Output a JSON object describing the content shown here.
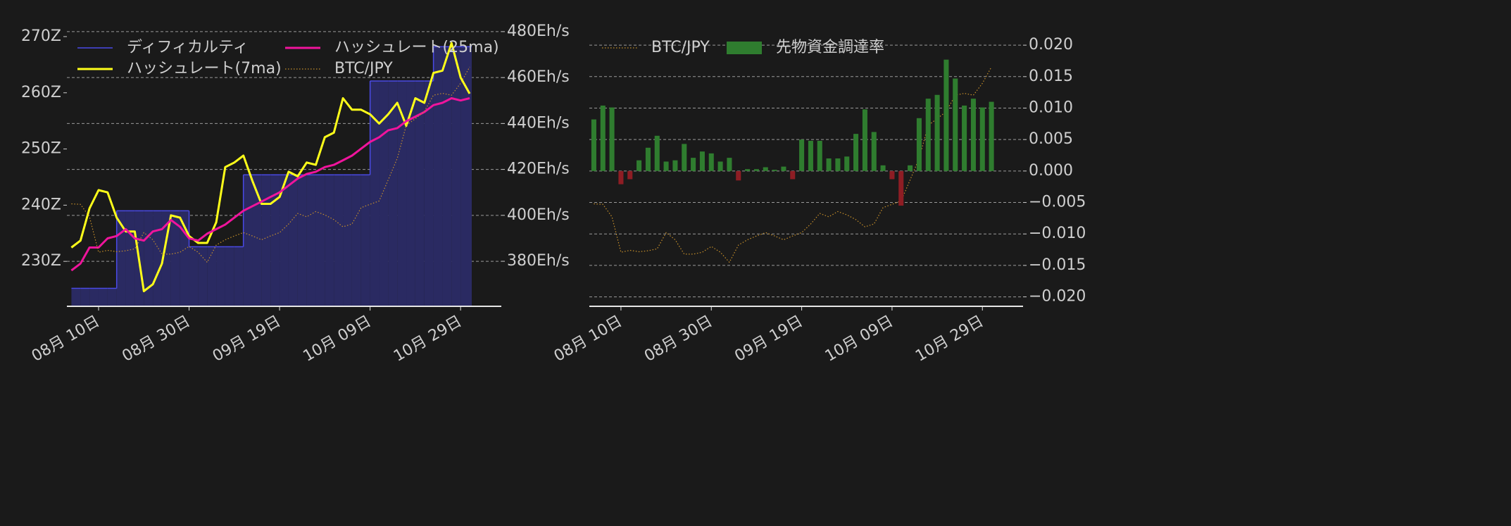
{
  "chart_data": [
    {
      "type": "line",
      "x": [
        "08-04",
        "08-06",
        "08-08",
        "08-10",
        "08-12",
        "08-14",
        "08-16",
        "08-18",
        "08-20",
        "08-22",
        "08-24",
        "08-26",
        "08-28",
        "08-30",
        "09-01",
        "09-03",
        "09-05",
        "09-07",
        "09-09",
        "09-11",
        "09-13",
        "09-15",
        "09-17",
        "09-19",
        "09-21",
        "09-23",
        "09-25",
        "09-27",
        "09-29",
        "10-01",
        "10-03",
        "10-05",
        "10-07",
        "10-09",
        "10-11",
        "10-13",
        "10-15",
        "10-17",
        "10-19",
        "10-21",
        "10-23",
        "10-25",
        "10-27",
        "10-29",
        "10-31"
      ],
      "xlim": [
        "08-03",
        "11-07"
      ],
      "xticks": [
        {
          "value": "08-10",
          "label": "08月 10日"
        },
        {
          "value": "08-30",
          "label": "08月 30日"
        },
        {
          "value": "09-19",
          "label": "09月 19日"
        },
        {
          "value": "10-09",
          "label": "10月 09日"
        },
        {
          "value": "10-29",
          "label": "10月 29日"
        }
      ],
      "ylim": [
        222,
        271.5
      ],
      "yticks": [
        {
          "value": 230,
          "label": "230Z"
        },
        {
          "value": 240,
          "label": "240Z"
        },
        {
          "value": 250,
          "label": "250Z"
        },
        {
          "value": 260,
          "label": "260Z"
        },
        {
          "value": 270,
          "label": "270Z"
        }
      ],
      "y_side": "left",
      "y2lim": [
        360.4,
        481.5
      ],
      "y2ticks": [
        {
          "value": 380,
          "label": "380Eh/s"
        },
        {
          "value": 400,
          "label": "400Eh/s"
        },
        {
          "value": 420,
          "label": "420Eh/s"
        },
        {
          "value": 440,
          "label": "440Eh/s"
        },
        {
          "value": 460,
          "label": "460Eh/s"
        },
        {
          "value": 480,
          "label": "480Eh/s"
        }
      ],
      "y3lim": [
        687,
        1268
      ],
      "grid": "y2",
      "legend_columns": 2,
      "series": [
        {
          "name": "ディフィカルティ",
          "type": "line",
          "drawstyle": "steps-post",
          "color": "#4a4ae6",
          "fill": "#2a2a62",
          "linewidth": 1.5,
          "linestyle": "solid",
          "axis": "y",
          "values": [
            225.2,
            225.2,
            225.2,
            225.2,
            225.2,
            239,
            239,
            239,
            239,
            239,
            239,
            239,
            239,
            232.6,
            232.6,
            232.6,
            232.6,
            232.6,
            232.6,
            245.4,
            245.4,
            245.4,
            245.4,
            245.4,
            245.4,
            245.4,
            245.4,
            245.4,
            245.4,
            245.4,
            245.4,
            245.4,
            245.4,
            262.1,
            262.1,
            262.1,
            262.1,
            262.1,
            262.1,
            262.1,
            268.2,
            268.2,
            268.2,
            268.2,
            268.2
          ]
        },
        {
          "name": "ハッシュレート(7ma)",
          "type": "line",
          "color": "#ffff1a",
          "linewidth": 3,
          "linestyle": "solid",
          "axis": "y2",
          "values": [
            386,
            389,
            403,
            411,
            410,
            399,
            393,
            393,
            367,
            370,
            379,
            400,
            399,
            391,
            388,
            388,
            397,
            421,
            423,
            426,
            415,
            405,
            405,
            408,
            419,
            417,
            423,
            422,
            434,
            436,
            451,
            446,
            446,
            444,
            440,
            444,
            449,
            439,
            451,
            449,
            462,
            463,
            475,
            460,
            453
          ]
        },
        {
          "name": "ハッシュレート(25ma)",
          "type": "line",
          "color": "#f0149c",
          "linewidth": 3,
          "linestyle": "solid",
          "axis": "y2",
          "values": [
            376,
            379,
            386,
            386,
            390,
            391,
            394,
            390,
            389,
            393,
            394,
            398,
            395,
            390,
            389,
            392,
            394,
            396,
            399,
            402,
            404,
            406,
            408,
            410,
            413,
            416,
            418,
            419,
            421,
            422,
            424,
            426,
            429,
            432,
            434,
            437,
            438,
            441,
            443,
            445,
            448,
            449,
            451,
            450,
            451
          ]
        },
        {
          "name": "BTC/JPY",
          "type": "line",
          "color": "#c8902a",
          "linewidth": 1.2,
          "linestyle": "dotted",
          "axis": "y3",
          "values": [
            901,
            900,
            874,
            800,
            804,
            801,
            803,
            807,
            841,
            826,
            796,
            796,
            800,
            812,
            800,
            779,
            815,
            826,
            834,
            841,
            834,
            826,
            834,
            841,
            859,
            881,
            874,
            885,
            878,
            868,
            853,
            859,
            893,
            900,
            907,
            951,
            996,
            1065,
            1079,
            1094,
            1128,
            1132,
            1128,
            1153,
            1187
          ]
        }
      ]
    },
    {
      "type": "bar",
      "x": [
        "08-04",
        "08-06",
        "08-08",
        "08-10",
        "08-12",
        "08-14",
        "08-16",
        "08-18",
        "08-20",
        "08-22",
        "08-24",
        "08-26",
        "08-28",
        "08-30",
        "09-01",
        "09-03",
        "09-05",
        "09-07",
        "09-09",
        "09-11",
        "09-13",
        "09-15",
        "09-17",
        "09-19",
        "09-21",
        "09-23",
        "09-25",
        "09-27",
        "09-29",
        "10-01",
        "10-03",
        "10-05",
        "10-07",
        "10-09",
        "10-11",
        "10-13",
        "10-15",
        "10-17",
        "10-19",
        "10-21",
        "10-23",
        "10-25",
        "10-27",
        "10-29",
        "10-31"
      ],
      "xlim": [
        "08-03",
        "11-07"
      ],
      "xticks": [
        {
          "value": "08-10",
          "label": "08月 10日"
        },
        {
          "value": "08-30",
          "label": "08月 30日"
        },
        {
          "value": "09-19",
          "label": "09月 19日"
        },
        {
          "value": "10-09",
          "label": "10月 09日"
        },
        {
          "value": "10-29",
          "label": "10月 29日"
        }
      ],
      "ylim": [
        -0.0215,
        0.0227
      ],
      "yticks": [
        {
          "value": -0.02,
          "label": "−0.020"
        },
        {
          "value": -0.015,
          "label": "−0.015"
        },
        {
          "value": -0.01,
          "label": "−0.010"
        },
        {
          "value": -0.005,
          "label": "−0.005"
        },
        {
          "value": 0,
          "label": "0.000"
        },
        {
          "value": 0.005,
          "label": "0.005"
        },
        {
          "value": 0.01,
          "label": "0.010"
        },
        {
          "value": 0.015,
          "label": "0.015"
        },
        {
          "value": 0.02,
          "label": "0.020"
        }
      ],
      "y_side": "right",
      "y3lim": [
        687,
        1268
      ],
      "grid": "y",
      "legend_columns": 2,
      "series": [
        {
          "name": "BTC/JPY",
          "type": "line",
          "color": "#c8902a",
          "linewidth": 1.2,
          "linestyle": "dotted",
          "axis": "y3",
          "values": [
            901,
            900,
            874,
            800,
            804,
            801,
            803,
            807,
            841,
            826,
            796,
            796,
            800,
            812,
            800,
            779,
            815,
            826,
            834,
            841,
            834,
            826,
            834,
            841,
            859,
            881,
            874,
            885,
            878,
            868,
            853,
            859,
            893,
            900,
            907,
            951,
            996,
            1065,
            1079,
            1094,
            1128,
            1132,
            1128,
            1153,
            1187
          ]
        },
        {
          "name": "先物資金調達率",
          "type": "bar",
          "color": "#2f7d2f",
          "negative_color": "#8e1d24",
          "axis": "y",
          "values": [
            0.0082,
            0.0104,
            0.0101,
            -0.0021,
            -0.0013,
            0.0017,
            0.0037,
            0.0056,
            0.0015,
            0.0017,
            0.0043,
            0.0021,
            0.0031,
            0.0028,
            0.0015,
            0.0021,
            -0.0015,
            0.0003,
            0.0003,
            0.0006,
            0.0002,
            0.0007,
            -0.0013,
            0.005,
            0.0048,
            0.0048,
            0.002,
            0.002,
            0.0023,
            0.0059,
            0.0098,
            0.0062,
            0.0009,
            -0.0013,
            -0.0055,
            0.0009,
            0.0084,
            0.0115,
            0.0121,
            0.0177,
            0.0147,
            0.0104,
            0.0115,
            0.0101,
            0.011
          ]
        }
      ]
    }
  ]
}
